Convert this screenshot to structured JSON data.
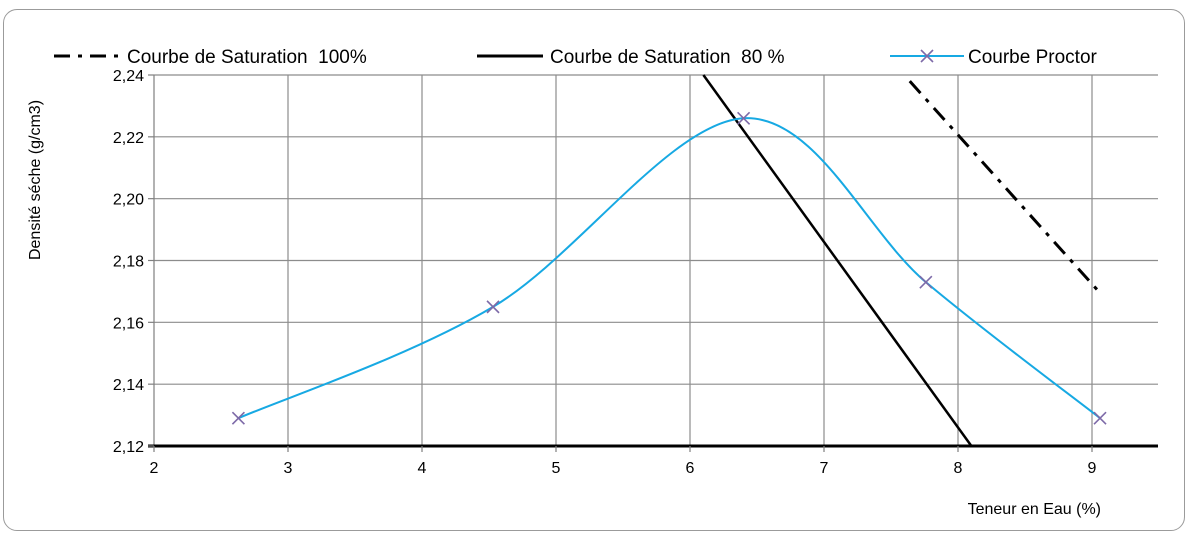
{
  "chart_data": {
    "type": "line",
    "title": "",
    "xlabel": "Teneur en Eau (%)",
    "ylabel": "Densité séche (g/cm3)",
    "xlim": [
      2,
      9.5
    ],
    "ylim": [
      2.12,
      2.24
    ],
    "x_ticks": [
      2,
      3,
      4,
      5,
      6,
      7,
      8,
      9
    ],
    "x_tick_labels": [
      "2",
      "3",
      "4",
      "5",
      "6",
      "7",
      "8",
      "9"
    ],
    "y_ticks": [
      2.12,
      2.14,
      2.16,
      2.18,
      2.2,
      2.22,
      2.24
    ],
    "y_tick_labels": [
      "2,12",
      "2,14",
      "2,16",
      "2,18",
      "2,20",
      "2,22",
      "2,24"
    ],
    "grid": true,
    "legend_position": "top",
    "series": [
      {
        "name": "Courbe de Saturation  100%",
        "style": "dash-dot",
        "color": "#000000",
        "x": [
          7.64,
          9.05
        ],
        "y": [
          2.238,
          2.17
        ]
      },
      {
        "name": "Courbe de Saturation  80 %",
        "style": "solid",
        "color": "#000000",
        "x": [
          6.1,
          8.1
        ],
        "y": [
          2.24,
          2.12
        ]
      },
      {
        "name": "Courbe Proctor",
        "style": "smooth",
        "color": "#17a9e3",
        "marker": "x",
        "marker_color": "#7d6aa8",
        "x": [
          2.63,
          4.53,
          6.4,
          7.76,
          9.06
        ],
        "y": [
          2.129,
          2.165,
          2.226,
          2.173,
          2.129
        ]
      }
    ]
  }
}
